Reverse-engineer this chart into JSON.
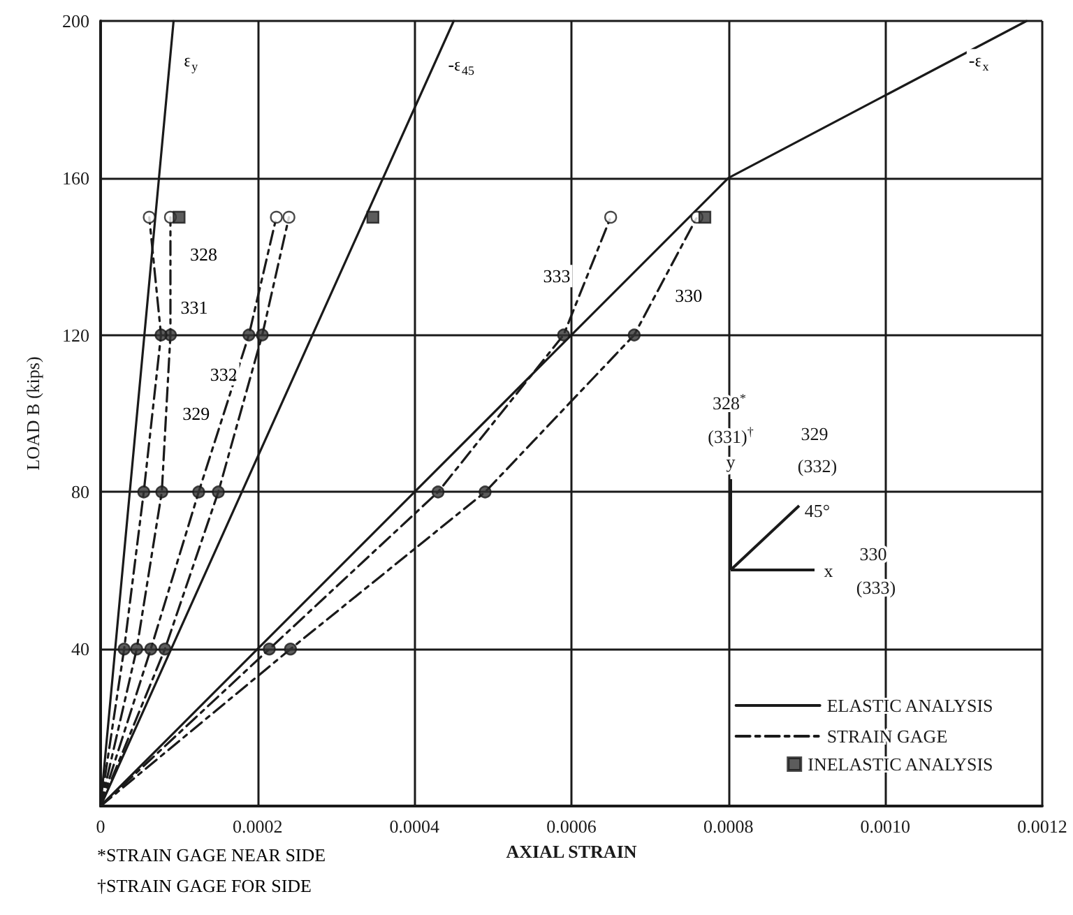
{
  "chart_data": {
    "type": "line",
    "xlabel": "AXIAL STRAIN",
    "ylabel": "LOAD B (kips)",
    "xlim": [
      0,
      0.0012
    ],
    "xticks": [
      0,
      0.0002,
      0.0004,
      0.0006,
      0.0008,
      {
        "value": 0.001,
        "label": "0.0010"
      },
      0.0012
    ],
    "ylim": [
      0,
      200
    ],
    "yticks": [
      {
        "value": 0,
        "label": null
      },
      40,
      80,
      120,
      160,
      200
    ],
    "grid": true,
    "legend": "bottom right",
    "series": [
      {
        "name": "ELASTIC ANALYSIS",
        "line_style": "solid",
        "marker": "none",
        "color": "#1a1a1a",
        "x": [
          0,
          9.3e-05
        ],
        "values": [
          0,
          200
        ]
      },
      {
        "line_style": "solid",
        "marker": "none",
        "color": "#1a1a1a",
        "x": [
          0,
          0.00045
        ],
        "values": [
          0,
          200
        ]
      },
      {
        "line_style": "solid",
        "marker": "none",
        "color": "#1a1a1a",
        "x": [
          0,
          0.0008,
          0.00118
        ],
        "values": [
          0,
          160,
          200
        ]
      },
      {
        "name": "STRAIN GAGE",
        "line_style": "dashed",
        "marker": "none",
        "color": "#1a1a1a",
        "x": [
          0,
          4.6e-05,
          7.8e-05,
          8.9e-05,
          8.9e-05
        ],
        "values": [
          0,
          40,
          80,
          120,
          150
        ]
      },
      {
        "line_style": "dashed",
        "marker": "none",
        "color": "#1a1a1a",
        "x": [
          0,
          3e-05,
          5.5e-05,
          7.7e-05,
          6.2e-05
        ],
        "values": [
          0,
          40,
          80,
          120,
          150
        ]
      },
      {
        "line_style": "dashed",
        "marker": "none",
        "color": "#1a1a1a",
        "x": [
          0,
          6.4e-05,
          0.000125,
          0.000189,
          0.000224
        ],
        "values": [
          0,
          40,
          80,
          120,
          150
        ]
      },
      {
        "line_style": "dashed",
        "marker": "none",
        "color": "#1a1a1a",
        "x": [
          0,
          8.2e-05,
          0.00015,
          0.000206,
          0.00024
        ],
        "values": [
          0,
          40,
          80,
          120,
          150
        ]
      },
      {
        "line_style": "dashed",
        "marker": "none",
        "color": "#1a1a1a",
        "x": [
          0,
          0.000215,
          0.00043,
          0.00059,
          0.00065
        ],
        "values": [
          0,
          40,
          80,
          120,
          150
        ]
      },
      {
        "line_style": "dashed",
        "marker": "none",
        "color": "#1a1a1a",
        "x": [
          0,
          0.000242,
          0.00049,
          0.00068,
          0.00076
        ],
        "values": [
          0,
          40,
          80,
          120,
          150
        ]
      },
      {
        "type": "scatter",
        "marker": "circle",
        "color": "#333333",
        "x": [
          4.6e-05,
          7.8e-05,
          8.9e-05,
          3e-05,
          5.5e-05,
          7.7e-05,
          6.4e-05,
          0.000125,
          0.000189,
          8.2e-05,
          0.00015,
          0.000206,
          0.000215,
          0.00043,
          0.00059,
          0.000242,
          0.00049,
          0.00068
        ],
        "values": [
          40,
          80,
          120,
          40,
          80,
          120,
          40,
          80,
          120,
          40,
          80,
          120,
          40,
          80,
          120,
          40,
          80,
          120
        ]
      },
      {
        "type": "scatter",
        "marker": "circle",
        "color": "#ffffff",
        "x": [
          8.9e-05,
          6.2e-05,
          0.000224,
          0.00024,
          0.00065,
          0.00076
        ],
        "values": [
          150,
          150,
          150,
          150,
          150,
          150
        ]
      },
      {
        "name": "INELASTIC ANALYSIS",
        "type": "scatter",
        "marker": "square",
        "color": "#333333",
        "x": [
          0.0001,
          0.000347,
          0.00077
        ],
        "values": [
          150,
          150,
          150
        ]
      }
    ],
    "annotations": [
      {
        "text": "ε$_{y}$",
        "x": 8.84e-05,
        "y": 190
      },
      {
        "text": "-ε$_{45}$",
        "x": 0.000425,
        "y": 189
      },
      {
        "text": "-ε$_{x}$",
        "x": 0.001085,
        "y": 190
      },
      {
        "text": "328",
        "x": 8.9e-05,
        "y": 142
      },
      {
        "text": "331",
        "x": 7.35e-05,
        "y": 127
      },
      {
        "text": "332",
        "x": 0.000192,
        "y": 110
      },
      {
        "text": "329",
        "x": 0.000157,
        "y": 100
      },
      {
        "text": "333",
        "x": 0.00062,
        "y": 135
      },
      {
        "text": "330",
        "x": 0.000707,
        "y": 130
      },
      "*STRAIN GAGE NEAR SIDE",
      "†STRAIN GAGE FOR SIDE",
      "328$^{*}$",
      "(331)$^{†}$",
      "329",
      "(332)",
      "y",
      "45°",
      "x",
      "330",
      "(333)"
    ]
  }
}
